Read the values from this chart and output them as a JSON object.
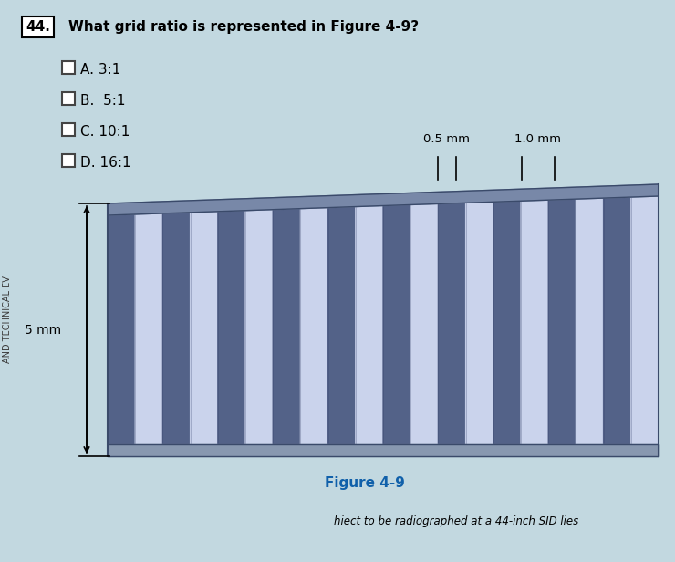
{
  "question_num": "44.",
  "question_text": "What grid ratio is represented in Figure 4-9?",
  "options": [
    "A. 3:1",
    "B.  5:1",
    "C. 10:1",
    "D. 16:1"
  ],
  "figure_label": "Figure 4-9",
  "grid_label_height": "5 mm",
  "grid_label_width_1": "0.5 mm",
  "grid_label_width_2": "1.0 mm",
  "bottom_text": "hiect to be radiographed at a 44-inch SID lies",
  "bg_color": "#c2d8e0",
  "grid_bg_color": "#aabdd8",
  "grid_dark_strip": "#4a5880",
  "grid_light_strip": "#d0d8f0",
  "top_bar_color": "#7888a8",
  "bottom_bar_color": "#8898b0",
  "fig_label_color": "#1060aa",
  "num_strips": 20,
  "left_side_text": "AND TECHNICAL EV"
}
